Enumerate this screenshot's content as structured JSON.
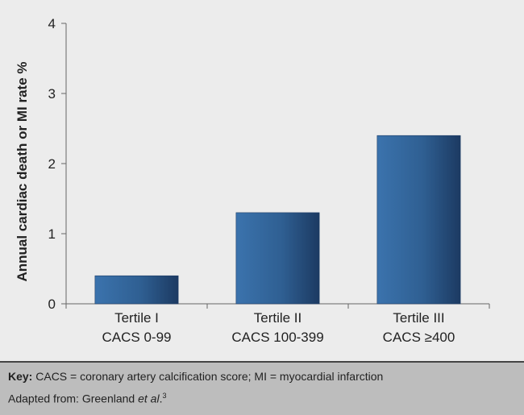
{
  "chart_data": {
    "type": "bar",
    "categories": [
      [
        "Tertile I",
        "CACS 0-99"
      ],
      [
        "Tertile II",
        "CACS 100-399"
      ],
      [
        "Tertile III",
        "CACS ≥400"
      ]
    ],
    "values": [
      0.4,
      1.3,
      2.4
    ],
    "ylabel": "Annual cardiac death or MI rate %",
    "ylim": [
      0,
      4
    ],
    "yticks": [
      0,
      1,
      2,
      3,
      4
    ],
    "grid": false,
    "bar_color": "#2f5f92"
  },
  "key": {
    "label": "Key:",
    "text": "CACS = coronary artery calcification score; MI = myocardial infarction"
  },
  "source": {
    "prefix": "Adapted from: Greenland ",
    "italic": "et al",
    "suffix": ".",
    "ref": "3"
  }
}
